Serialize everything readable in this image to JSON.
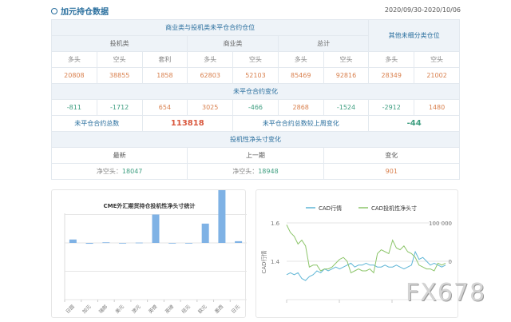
{
  "header": {
    "title": "加元持仓数据",
    "date_range": "2020/09/30-2020/10/06"
  },
  "table": {
    "section_main": "商业类与投机类未平仓合约仓位",
    "section_other": "其他未细分类仓位",
    "groups": [
      "投机类",
      "商业类",
      "总计"
    ],
    "col_labels": [
      "多头",
      "空头",
      "套利",
      "多头",
      "空头",
      "多头",
      "空头",
      "多头",
      "空头"
    ],
    "positions": [
      "20808",
      "38855",
      "1858",
      "62803",
      "52103",
      "85469",
      "92816",
      "28349",
      "21002"
    ],
    "change_title": "未平仓合约变化",
    "changes": [
      "-811",
      "-1712",
      "654",
      "3025",
      "-466",
      "2868",
      "-1524",
      "-2912",
      "1480"
    ],
    "total_label": "未平仓合约总数",
    "total_value": "113818",
    "total_change_label": "未平仓合约总数较上周变化",
    "total_change_value": "-44",
    "net_title": "投机性净头寸变化",
    "net_headers": [
      "最新",
      "上一期",
      "变化"
    ],
    "net_latest_label": "净空头：",
    "net_latest": "18047",
    "net_prev_label": "净空头：",
    "net_prev": "18948",
    "net_change": "901"
  },
  "chart_data": [
    {
      "type": "bar",
      "title": "CME外汇期货持仓投机性净头寸统计",
      "categories": [
        "日圆",
        "加元",
        "瑞郎",
        "美元",
        "澳元",
        "英镑",
        "英磅",
        "纽元",
        "欧元",
        "墨西",
        "日元"
      ],
      "values": [
        0.12,
        -0.03,
        0.02,
        0,
        0.01,
        1.0,
        -0.02,
        0,
        0.68,
        1.9,
        0.06
      ],
      "color": "#7fb2e5",
      "grid": true
    },
    {
      "type": "line",
      "series": [
        {
          "name": "CAD行情",
          "axis": "left",
          "color": "#5fb6d6",
          "values": [
            1.33,
            1.34,
            1.33,
            1.34,
            1.31,
            1.3,
            1.32,
            1.33,
            1.35,
            1.34,
            1.36,
            1.35,
            1.36,
            1.37,
            1.36,
            1.37,
            1.38,
            1.39,
            1.37,
            1.38,
            1.38,
            1.39,
            1.38,
            1.38,
            1.37,
            1.37,
            1.38,
            1.37,
            1.37,
            1.38,
            1.37,
            1.36,
            1.37,
            1.38,
            1.45,
            1.41,
            1.42,
            1.4,
            1.38,
            1.39,
            1.38,
            1.37,
            1.38
          ]
        },
        {
          "name": "CAD投机性净头寸",
          "axis": "right",
          "color": "#8cc56a",
          "values": [
            95000,
            75000,
            65000,
            45000,
            55000,
            40000,
            -15000,
            -10000,
            -10000,
            -25000,
            -20000,
            -20000,
            -15000,
            -5000,
            5000,
            10000,
            0,
            -30000,
            -25000,
            -20000,
            -25000,
            -25000,
            -20000,
            -30000,
            20000,
            30000,
            25000,
            20000,
            55000,
            35000,
            30000,
            40000,
            25000,
            20000,
            10000,
            -10000,
            -15000,
            -20000,
            -20000,
            -25000,
            -5000,
            -10000,
            -5000
          ]
        }
      ],
      "ylabel": "CAD行情",
      "left_ticks": [
        "1.6",
        "1.4"
      ],
      "right_ticks": [
        "100 000",
        "0"
      ],
      "ylim_left": [
        1.2,
        1.6
      ],
      "ylim_right": [
        -100000,
        100000
      ]
    }
  ],
  "watermark": "FX678"
}
